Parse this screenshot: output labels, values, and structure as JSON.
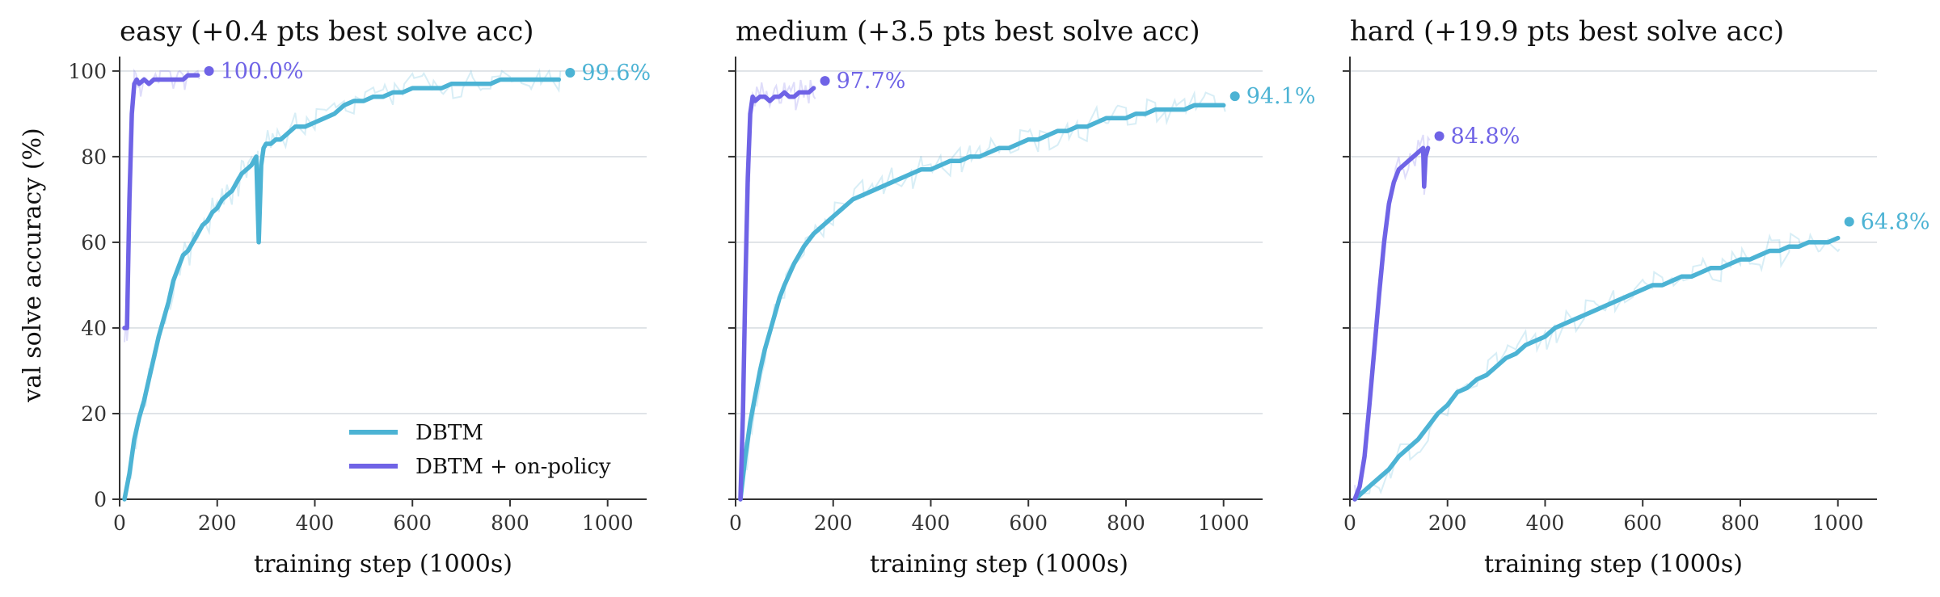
{
  "colors": {
    "dbtm": "#4cb3d4",
    "onpolicy": "#6f63e6",
    "grid": "#d9dee3",
    "axis": "#333333"
  },
  "legend": {
    "placement": "lower-right",
    "entries": [
      "DBTM",
      "DBTM + on-policy"
    ]
  },
  "chart_data": [
    {
      "type": "line",
      "title": "easy   (+0.4 pts best solve acc)",
      "xlabel": "training step (1000s)",
      "ylabel": "val solve accuracy (%)",
      "xlim": [
        0,
        1080
      ],
      "ylim": [
        0,
        103
      ],
      "xticks": [
        0,
        200,
        400,
        600,
        800,
        1000
      ],
      "yticks": [
        0,
        20,
        40,
        60,
        80,
        100
      ],
      "grid": "horizontal",
      "series": [
        {
          "name": "DBTM",
          "end_label": "99.6%",
          "x": [
            10,
            20,
            30,
            40,
            50,
            60,
            70,
            80,
            90,
            100,
            110,
            120,
            130,
            140,
            150,
            160,
            170,
            180,
            190,
            200,
            210,
            220,
            230,
            240,
            250,
            260,
            270,
            280,
            285,
            290,
            295,
            300,
            310,
            320,
            330,
            340,
            350,
            360,
            380,
            400,
            420,
            440,
            460,
            480,
            500,
            520,
            540,
            560,
            580,
            600,
            620,
            640,
            660,
            680,
            700,
            720,
            740,
            760,
            780,
            800,
            820,
            840,
            860,
            880,
            900
          ],
          "y": [
            0,
            6,
            14,
            19,
            23,
            28,
            33,
            38,
            42,
            46,
            51,
            54,
            57,
            58,
            60,
            62,
            64,
            65,
            67,
            68,
            70,
            71,
            72,
            74,
            76,
            77,
            78,
            80,
            60,
            78,
            82,
            83,
            83,
            84,
            84,
            85,
            86,
            87,
            87,
            88,
            89,
            90,
            92,
            93,
            93,
            94,
            94,
            95,
            95,
            96,
            96,
            96,
            96,
            97,
            97,
            97,
            97,
            97,
            98,
            98,
            98,
            98,
            98,
            98,
            98
          ]
        },
        {
          "name": "DBTM + on-policy",
          "end_label": "100.0%",
          "x": [
            10,
            15,
            20,
            25,
            30,
            35,
            40,
            50,
            60,
            70,
            80,
            90,
            100,
            110,
            120,
            130,
            140,
            150,
            160
          ],
          "y": [
            40,
            40,
            70,
            90,
            97,
            98,
            97,
            98,
            97,
            98,
            98,
            98,
            98,
            98,
            98,
            98,
            99,
            99,
            99
          ]
        }
      ]
    },
    {
      "type": "line",
      "title": "medium   (+3.5 pts best solve acc)",
      "xlabel": "training step (1000s)",
      "ylabel": "",
      "xlim": [
        0,
        1080
      ],
      "ylim": [
        0,
        103
      ],
      "xticks": [
        0,
        200,
        400,
        600,
        800,
        1000
      ],
      "yticks": [
        0,
        20,
        40,
        60,
        80,
        100
      ],
      "grid": "horizontal",
      "series": [
        {
          "name": "DBTM",
          "end_label": "94.1%",
          "x": [
            10,
            20,
            30,
            40,
            50,
            60,
            70,
            80,
            90,
            100,
            120,
            140,
            160,
            180,
            200,
            220,
            240,
            260,
            280,
            300,
            320,
            340,
            360,
            380,
            400,
            420,
            440,
            460,
            480,
            500,
            520,
            540,
            560,
            580,
            600,
            620,
            640,
            660,
            680,
            700,
            720,
            740,
            760,
            780,
            800,
            820,
            840,
            860,
            880,
            900,
            920,
            940,
            960,
            980,
            1000
          ],
          "y": [
            0,
            10,
            18,
            24,
            30,
            35,
            39,
            43,
            47,
            50,
            55,
            59,
            62,
            64,
            66,
            68,
            70,
            71,
            72,
            73,
            74,
            75,
            76,
            77,
            77,
            78,
            79,
            79,
            80,
            80,
            81,
            82,
            82,
            83,
            84,
            84,
            85,
            86,
            86,
            87,
            87,
            88,
            89,
            89,
            89,
            90,
            90,
            91,
            91,
            91,
            91,
            92,
            92,
            92,
            92
          ]
        },
        {
          "name": "DBTM + on-policy",
          "end_label": "97.7%",
          "x": [
            10,
            15,
            20,
            25,
            30,
            35,
            40,
            50,
            60,
            70,
            80,
            90,
            100,
            110,
            120,
            130,
            140,
            150,
            160
          ],
          "y": [
            0,
            20,
            50,
            75,
            90,
            94,
            93,
            94,
            94,
            93,
            94,
            94,
            95,
            94,
            94,
            95,
            95,
            95,
            96
          ]
        }
      ]
    },
    {
      "type": "line",
      "title": "hard   (+19.9 pts best solve acc)",
      "xlabel": "training step (1000s)",
      "ylabel": "",
      "xlim": [
        0,
        1080
      ],
      "ylim": [
        0,
        103
      ],
      "xticks": [
        0,
        200,
        400,
        600,
        800,
        1000
      ],
      "yticks": [
        0,
        20,
        40,
        60,
        80,
        100
      ],
      "grid": "horizontal",
      "series": [
        {
          "name": "DBTM",
          "end_label": "64.8%",
          "x": [
            10,
            20,
            40,
            60,
            80,
            100,
            120,
            140,
            160,
            180,
            200,
            220,
            240,
            260,
            280,
            300,
            320,
            340,
            360,
            380,
            400,
            420,
            440,
            460,
            480,
            500,
            520,
            540,
            560,
            580,
            600,
            620,
            640,
            660,
            680,
            700,
            720,
            740,
            760,
            780,
            800,
            820,
            840,
            860,
            880,
            900,
            920,
            940,
            960,
            980,
            1000
          ],
          "y": [
            0,
            1,
            3,
            5,
            7,
            10,
            12,
            14,
            17,
            20,
            22,
            25,
            26,
            28,
            29,
            31,
            33,
            34,
            36,
            37,
            38,
            40,
            41,
            42,
            43,
            44,
            45,
            46,
            47,
            48,
            49,
            50,
            50,
            51,
            52,
            52,
            53,
            54,
            54,
            55,
            56,
            56,
            57,
            58,
            58,
            59,
            59,
            60,
            60,
            60,
            61
          ]
        },
        {
          "name": "DBTM + on-policy",
          "end_label": "84.8%",
          "x": [
            10,
            20,
            30,
            40,
            50,
            60,
            70,
            80,
            90,
            100,
            110,
            120,
            130,
            140,
            150,
            152,
            155,
            160
          ],
          "y": [
            0,
            3,
            10,
            22,
            35,
            48,
            60,
            69,
            74,
            77,
            78,
            79,
            80,
            81,
            82,
            73,
            80,
            82
          ]
        }
      ]
    }
  ]
}
